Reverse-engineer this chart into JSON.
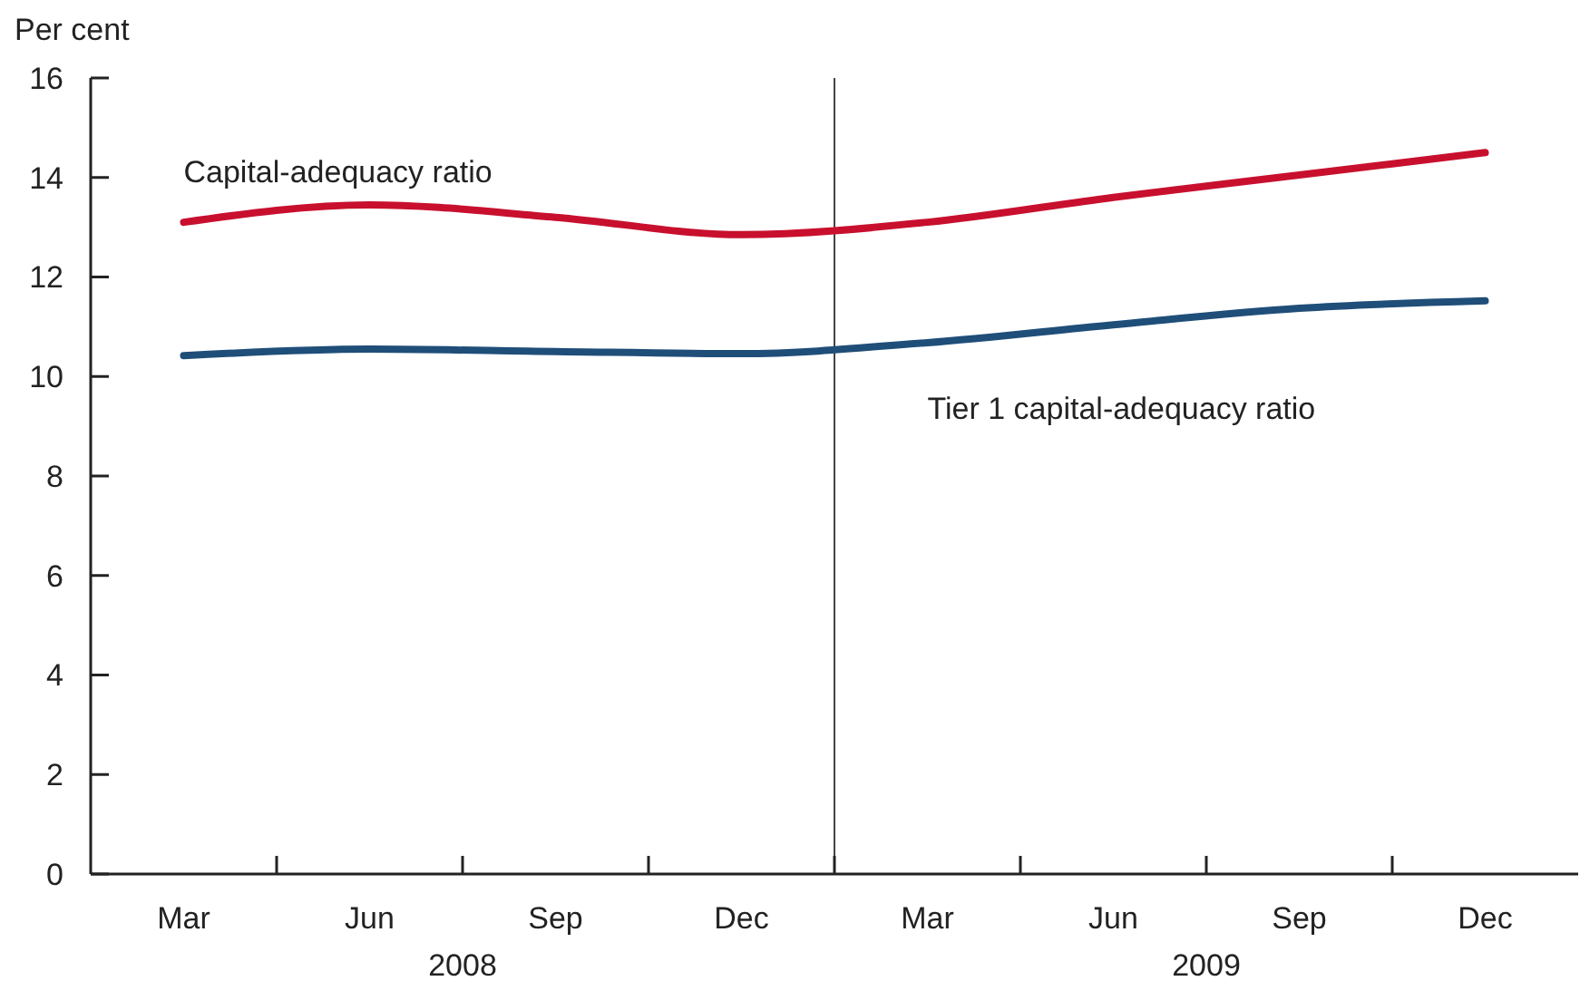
{
  "chart_data": {
    "type": "line",
    "ylabel": "Per cent",
    "categories": [
      "Mar",
      "Jun",
      "Sep",
      "Dec",
      "Mar",
      "Jun",
      "Sep",
      "Dec"
    ],
    "series": [
      {
        "name": "Capital-adequacy ratio",
        "color": "#c8102e",
        "values": [
          13.1,
          13.45,
          13.2,
          12.85,
          13.1,
          13.6,
          14.05,
          14.5
        ]
      },
      {
        "name": "Tier 1 capital-adequacy ratio",
        "color": "#1f4e79",
        "values": [
          10.42,
          10.55,
          10.5,
          10.46,
          10.68,
          11.04,
          11.37,
          11.52
        ]
      }
    ],
    "ylim": [
      0,
      16
    ],
    "yticks": [
      0,
      2,
      4,
      6,
      8,
      10,
      12,
      14,
      16
    ],
    "grid": false,
    "legend": false,
    "marker": "none",
    "line_style": "solid",
    "annotations": [
      "2008",
      "2009"
    ]
  }
}
